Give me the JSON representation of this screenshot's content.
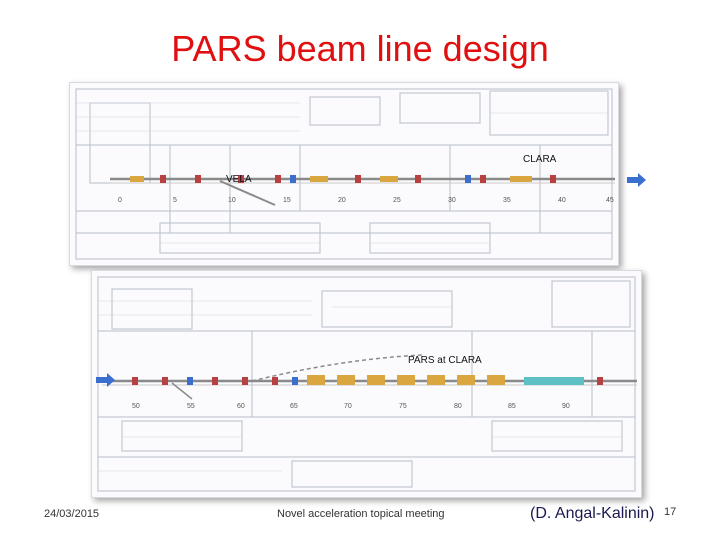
{
  "slide": {
    "title": "PARS beam line design",
    "date": "24/03/2015",
    "event": "Novel acceleration topical meeting",
    "author": "(D. Angal-Kalinin)",
    "page_number": "17"
  },
  "top_panel": {
    "labels": {
      "vela": "VELA",
      "clara": "CLARA"
    },
    "scale_ticks": [
      "0",
      "5",
      "10",
      "15",
      "20",
      "25",
      "30",
      "35",
      "40",
      "45"
    ]
  },
  "bottom_panel": {
    "labels": {
      "pars": "PARS at CLARA"
    },
    "scale_ticks": [
      "50",
      "55",
      "60",
      "65",
      "70",
      "75",
      "80",
      "85",
      "90"
    ]
  },
  "colors": {
    "title": "#e01010",
    "arrow": "#3a6fd0",
    "beamline": "#8a8a8a"
  }
}
